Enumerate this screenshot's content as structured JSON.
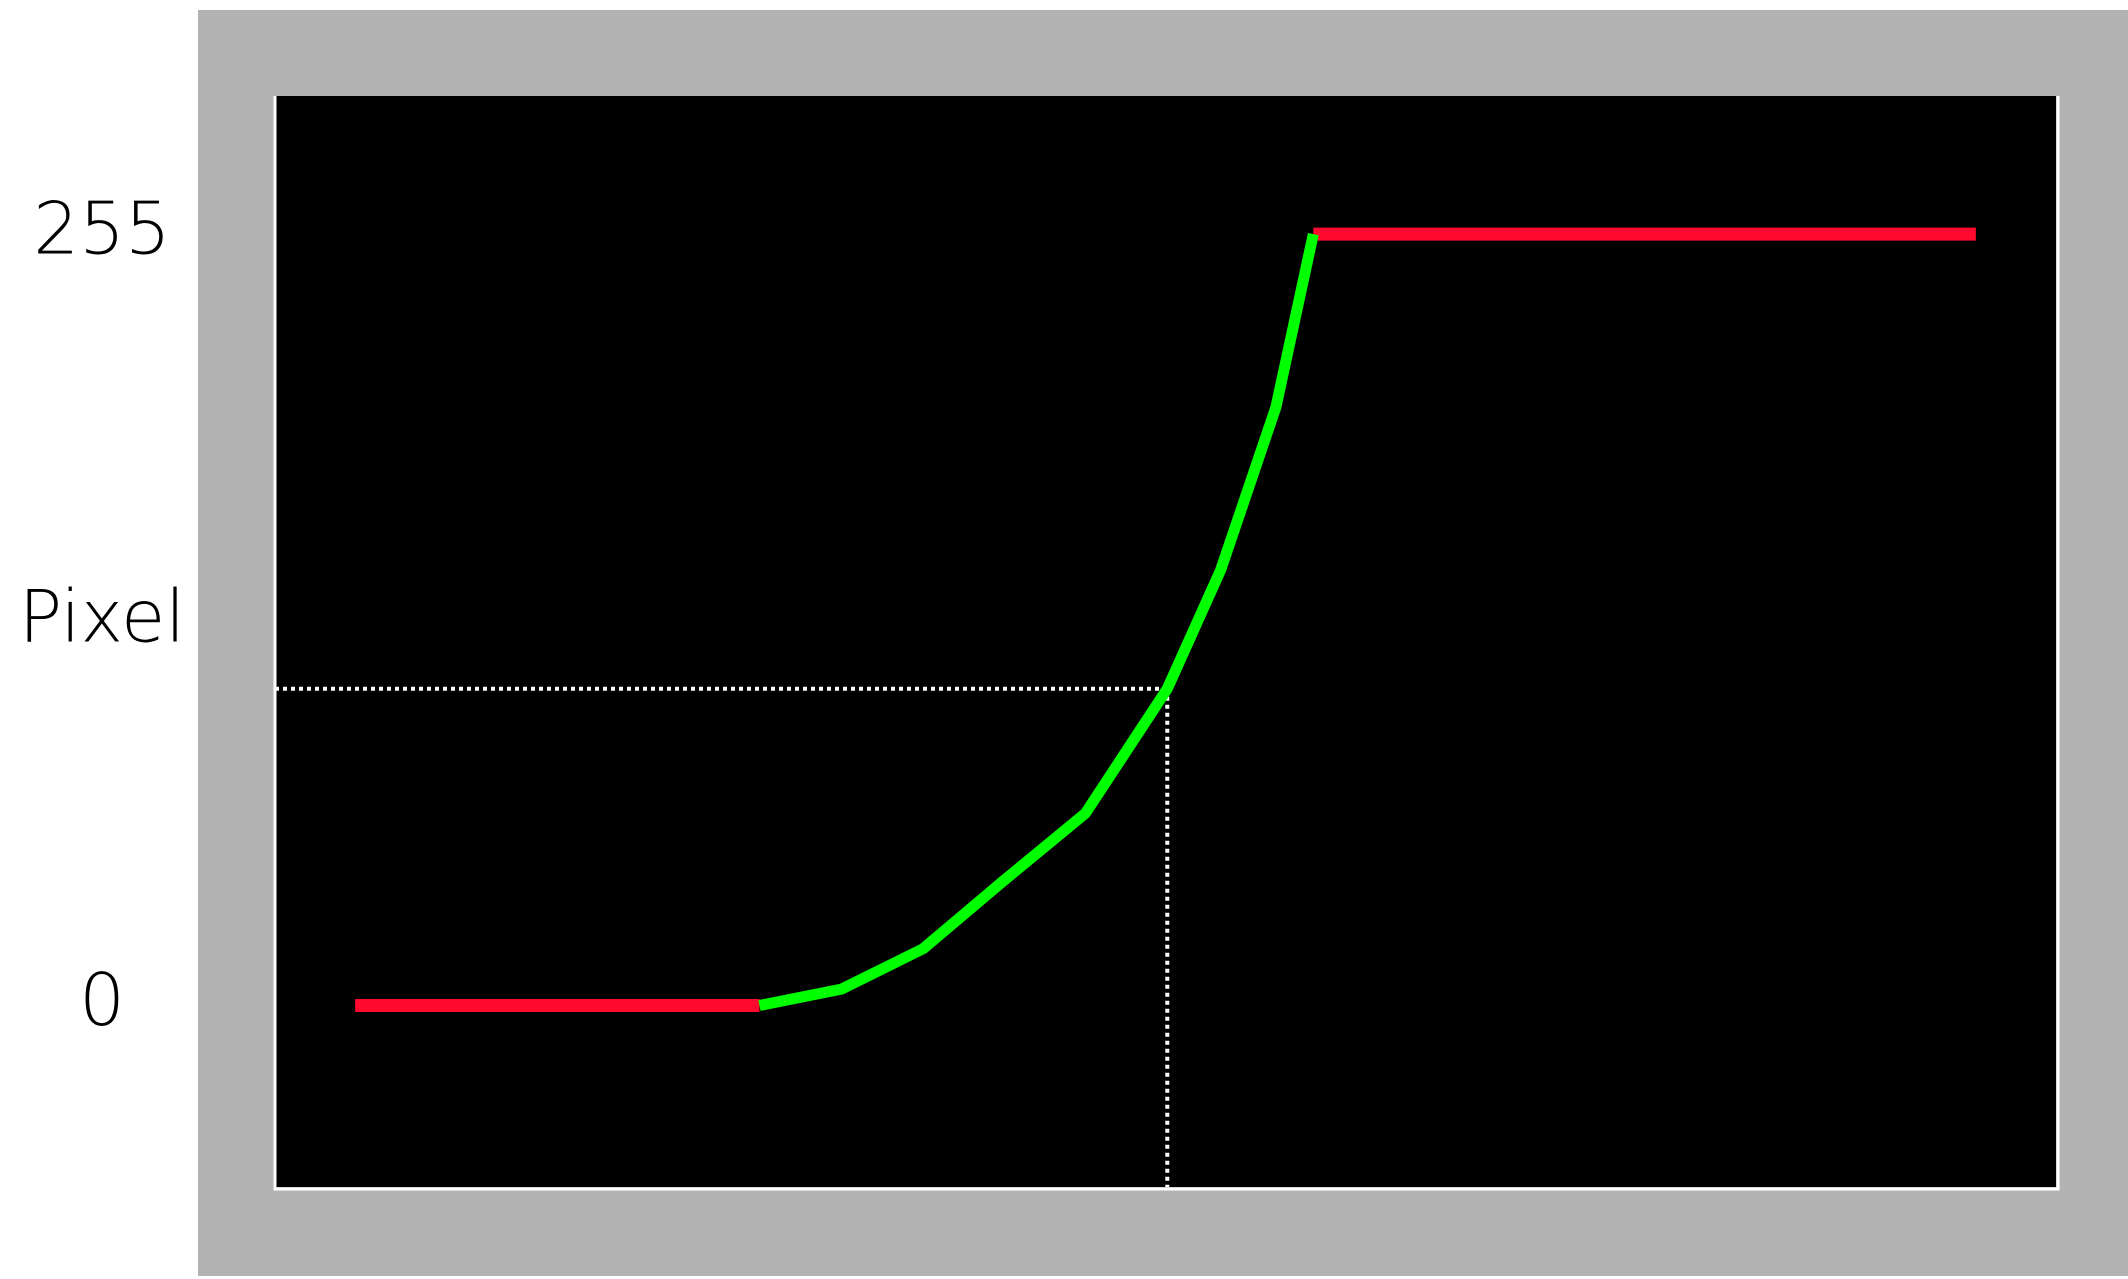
{
  "chart_data": {
    "type": "line",
    "ylabel": "Pixel",
    "x": [
      4.5,
      27.2,
      31.8,
      36.4,
      40.9,
      45.5,
      50.1,
      53.1,
      56.2,
      58.3,
      95.5
    ],
    "xlim": [
      0,
      100
    ],
    "series": [
      {
        "color": "#ff0a2e",
        "values": [
          0,
          0,
          null,
          null,
          null,
          null,
          null,
          null,
          null,
          255,
          255
        ]
      },
      {
        "color": "#00ff00",
        "values": [
          null,
          0,
          5.4,
          18.8,
          41.2,
          63.5,
          104.7,
          144,
          197.8,
          255,
          null
        ]
      }
    ],
    "marker": {
      "x": 50.1,
      "y": 104.7
    },
    "ylim": [
      -60,
      300
    ],
    "yticks": [
      0,
      255
    ],
    "grid": false
  }
}
